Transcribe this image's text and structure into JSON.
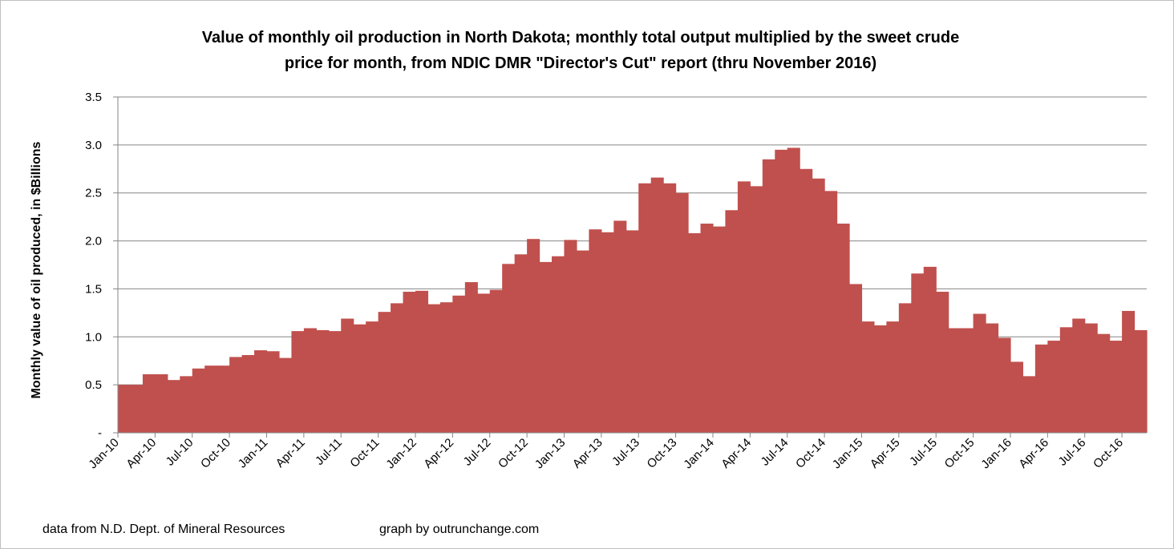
{
  "chart_data": {
    "type": "area",
    "title_line1": "Value of monthly oil production in North Dakota; monthly total output multiplied by the sweet crude",
    "title_line2": "price for month, from NDIC DMR \"Director's Cut\" report  (thru November 2016)",
    "ylabel": "Monthly value of oil produced, in $Billions",
    "xlabel": "",
    "ylim": [
      0,
      3.5
    ],
    "y_ticks": [
      0,
      0.5,
      1.0,
      1.5,
      2.0,
      2.5,
      3.0,
      3.5
    ],
    "y_tick_labels": [
      "-",
      "0.5",
      "1.0",
      "1.5",
      "2.0",
      "2.5",
      "3.0",
      "3.5"
    ],
    "grid": "horizontal",
    "color": "#c0504d",
    "x_tick_every": 3,
    "categories": [
      "Jan-10",
      "Feb-10",
      "Mar-10",
      "Apr-10",
      "May-10",
      "Jun-10",
      "Jul-10",
      "Aug-10",
      "Sep-10",
      "Oct-10",
      "Nov-10",
      "Dec-10",
      "Jan-11",
      "Feb-11",
      "Mar-11",
      "Apr-11",
      "May-11",
      "Jun-11",
      "Jul-11",
      "Aug-11",
      "Sep-11",
      "Oct-11",
      "Nov-11",
      "Dec-11",
      "Jan-12",
      "Feb-12",
      "Mar-12",
      "Apr-12",
      "May-12",
      "Jun-12",
      "Jul-12",
      "Aug-12",
      "Sep-12",
      "Oct-12",
      "Nov-12",
      "Dec-12",
      "Jan-13",
      "Feb-13",
      "Mar-13",
      "Apr-13",
      "May-13",
      "Jun-13",
      "Jul-13",
      "Aug-13",
      "Sep-13",
      "Oct-13",
      "Nov-13",
      "Dec-13",
      "Jan-14",
      "Feb-14",
      "Mar-14",
      "Apr-14",
      "May-14",
      "Jun-14",
      "Jul-14",
      "Aug-14",
      "Sep-14",
      "Oct-14",
      "Nov-14",
      "Dec-14",
      "Jan-15",
      "Feb-15",
      "Mar-15",
      "Apr-15",
      "May-15",
      "Jun-15",
      "Jul-15",
      "Aug-15",
      "Sep-15",
      "Oct-15",
      "Nov-15",
      "Dec-15",
      "Jan-16",
      "Feb-16",
      "Mar-16",
      "Apr-16",
      "May-16",
      "Jun-16",
      "Jul-16",
      "Aug-16",
      "Sep-16",
      "Oct-16",
      "Nov-16"
    ],
    "values": [
      0.5,
      0.5,
      0.61,
      0.61,
      0.55,
      0.59,
      0.67,
      0.7,
      0.7,
      0.79,
      0.81,
      0.86,
      0.85,
      0.78,
      1.06,
      1.09,
      1.07,
      1.06,
      1.19,
      1.13,
      1.16,
      1.26,
      1.35,
      1.47,
      1.48,
      1.34,
      1.36,
      1.43,
      1.57,
      1.45,
      1.49,
      1.76,
      1.86,
      2.02,
      1.78,
      1.84,
      2.01,
      1.9,
      2.12,
      2.09,
      2.21,
      2.11,
      2.6,
      2.66,
      2.6,
      2.5,
      2.08,
      2.18,
      2.15,
      2.32,
      2.62,
      2.57,
      2.85,
      2.95,
      2.97,
      2.75,
      2.65,
      2.52,
      2.18,
      1.55,
      1.16,
      1.12,
      1.16,
      1.35,
      1.66,
      1.73,
      1.47,
      1.09,
      1.09,
      1.24,
      1.14,
      0.99,
      0.74,
      0.59,
      0.92,
      0.96,
      1.1,
      1.19,
      1.14,
      1.03,
      0.96,
      1.27,
      1.07
    ]
  },
  "footer": {
    "source": "data from N.D. Dept. of Mineral Resources",
    "credit": "graph by outrunchange.com"
  }
}
